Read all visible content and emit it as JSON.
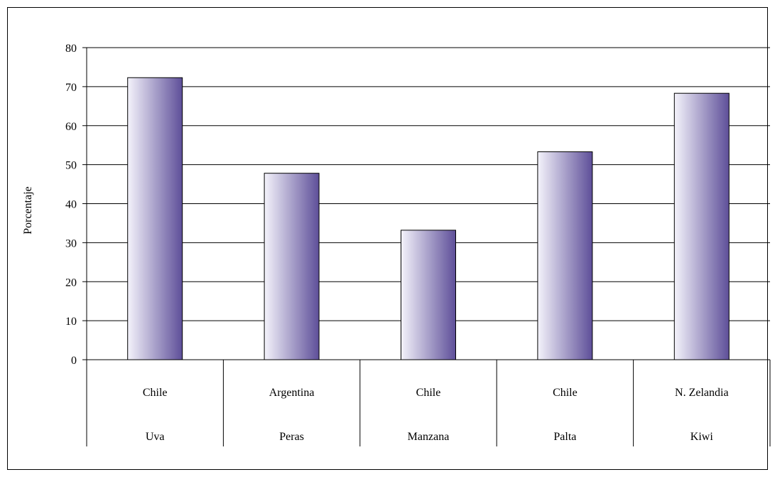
{
  "chart_data": {
    "type": "bar",
    "ylabel": "Porcentaje",
    "ylim": [
      0,
      80
    ],
    "yticks": [
      0,
      10,
      20,
      30,
      40,
      50,
      60,
      70,
      80
    ],
    "grid": true,
    "categories": [
      {
        "product": "Uva",
        "country": "Chile"
      },
      {
        "product": "Peras",
        "country": "Argentina"
      },
      {
        "product": "Manzana",
        "country": "Chile"
      },
      {
        "product": "Palta",
        "country": "Chile"
      },
      {
        "product": "Kiwi",
        "country": "N. Zelandia"
      }
    ],
    "values": [
      72.3,
      47.8,
      33.2,
      53.3,
      68.3
    ],
    "colors": {
      "bar_light": "#f4f3fb",
      "bar_dark": "#5e4f99",
      "axis": "#000000"
    }
  }
}
